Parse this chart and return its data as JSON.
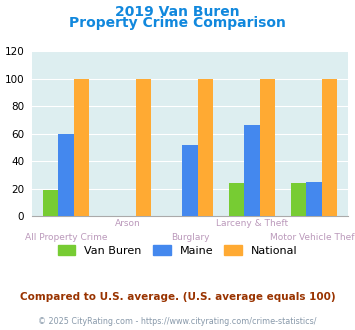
{
  "title_line1": "2019 Van Buren",
  "title_line2": "Property Crime Comparison",
  "categories": [
    "All Property Crime",
    "Arson",
    "Burglary",
    "Larceny & Theft",
    "Motor Vehicle Theft"
  ],
  "series": {
    "Van Buren": [
      19,
      0,
      0,
      24,
      24
    ],
    "Maine": [
      60,
      0,
      52,
      66,
      25
    ],
    "National": [
      100,
      100,
      100,
      100,
      100
    ]
  },
  "colors": {
    "Van Buren": "#77cc33",
    "Maine": "#4488ee",
    "National": "#ffaa33"
  },
  "ylim": [
    0,
    120
  ],
  "yticks": [
    0,
    20,
    40,
    60,
    80,
    100,
    120
  ],
  "title_color": "#1188dd",
  "label_top": [
    "",
    "Arson",
    "",
    "Larceny & Theft",
    ""
  ],
  "label_bot": [
    "All Property Crime",
    "",
    "Burglary",
    "",
    "Motor Vehicle Theft"
  ],
  "label_color": "#bb99bb",
  "bg_color": "#ddeef0",
  "footer_text": "Compared to U.S. average. (U.S. average equals 100)",
  "credit_text": "© 2025 CityRating.com - https://www.cityrating.com/crime-statistics/",
  "footer_color": "#993300",
  "credit_color": "#8899aa"
}
